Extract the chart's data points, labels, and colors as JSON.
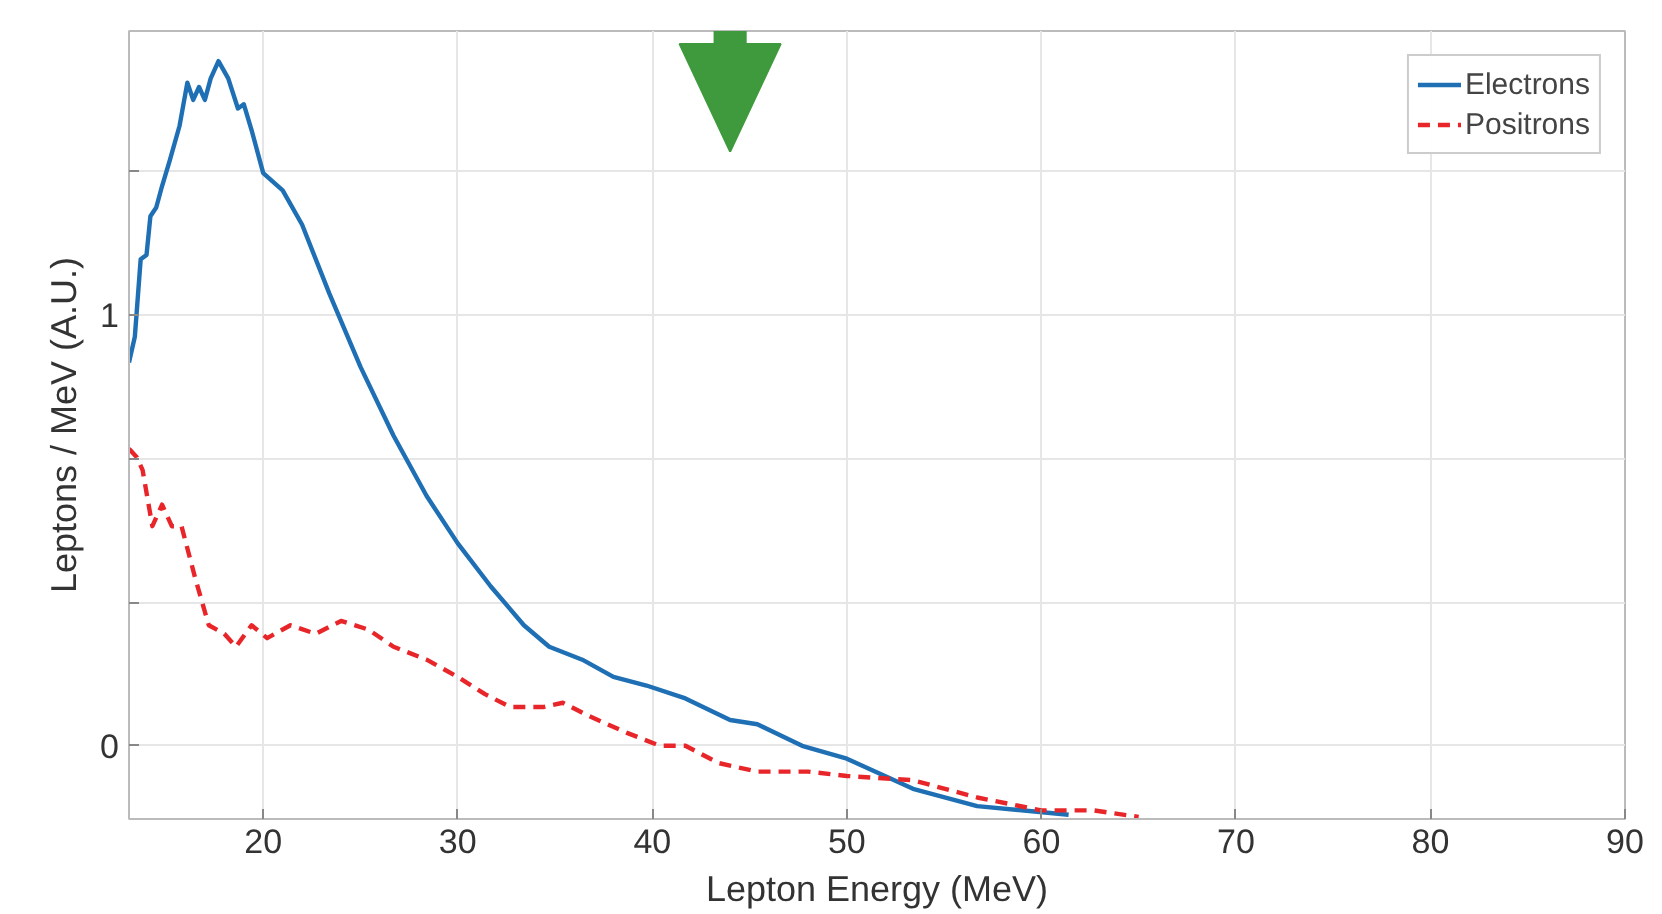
{
  "chart_data": {
    "type": "line",
    "xlabel": "Lepton Energy (MeV)",
    "ylabel": "Leptons / MeV (A.U.)",
    "xlim": [
      13.1,
      90
    ],
    "ylim": [
      -0.17,
      1.66
    ],
    "xticks": [
      20,
      30,
      40,
      50,
      60,
      70,
      80,
      90
    ],
    "yticks": [
      0,
      {
        "value": 0.3333,
        "label": null
      },
      {
        "value": 0.6667,
        "label": null
      },
      1,
      {
        "value": 1.3333,
        "label": null
      }
    ],
    "grid": true,
    "legend": "top right",
    "marker": "none",
    "series": [
      {
        "name": "Electrons",
        "color": "#1f6fb4",
        "line_style": "solid",
        "x": [
          13.1,
          13.4,
          13.7,
          14.0,
          14.2,
          14.5,
          14.8,
          15.2,
          15.7,
          16.1,
          16.4,
          16.7,
          17.0,
          17.3,
          17.7,
          18.2,
          18.7,
          19.0,
          19.4,
          20.0,
          21.0,
          22.0,
          23.4,
          25.0,
          26.7,
          28.4,
          30.0,
          31.7,
          33.4,
          34.7,
          36.4,
          38.0,
          39.7,
          41.7,
          44.0,
          45.4,
          47.7,
          50.0,
          53.4,
          56.7,
          61.4
        ],
        "values": [
          0.89,
          0.95,
          1.13,
          1.14,
          1.23,
          1.25,
          1.3,
          1.36,
          1.44,
          1.54,
          1.5,
          1.53,
          1.5,
          1.55,
          1.59,
          1.55,
          1.48,
          1.49,
          1.43,
          1.33,
          1.29,
          1.21,
          1.05,
          0.88,
          0.72,
          0.58,
          0.47,
          0.37,
          0.28,
          0.23,
          0.2,
          0.16,
          0.14,
          0.11,
          0.06,
          0.05,
          0.0,
          -0.03,
          -0.1,
          -0.14,
          -0.16
        ]
      },
      {
        "name": "Positrons",
        "color": "#e8262a",
        "line_style": "dashed",
        "x": [
          13.1,
          13.5,
          13.8,
          14.3,
          14.8,
          15.3,
          15.8,
          16.5,
          17.2,
          18.0,
          18.6,
          19.4,
          20.2,
          21.4,
          22.7,
          24.0,
          25.4,
          26.7,
          28.4,
          30.0,
          31.4,
          32.7,
          34.4,
          35.4,
          36.7,
          38.7,
          40.4,
          41.7,
          43.4,
          45.4,
          48.0,
          50.0,
          53.4,
          56.7,
          60.0,
          62.7,
          65.0
        ],
        "values": [
          0.69,
          0.67,
          0.64,
          0.51,
          0.56,
          0.51,
          0.51,
          0.39,
          0.28,
          0.26,
          0.23,
          0.28,
          0.25,
          0.28,
          0.26,
          0.29,
          0.27,
          0.23,
          0.2,
          0.16,
          0.12,
          0.09,
          0.09,
          0.1,
          0.07,
          0.03,
          0.0,
          0.0,
          -0.04,
          -0.06,
          -0.06,
          -0.07,
          -0.08,
          -0.12,
          -0.15,
          -0.15,
          -0.165
        ]
      }
    ]
  }
}
